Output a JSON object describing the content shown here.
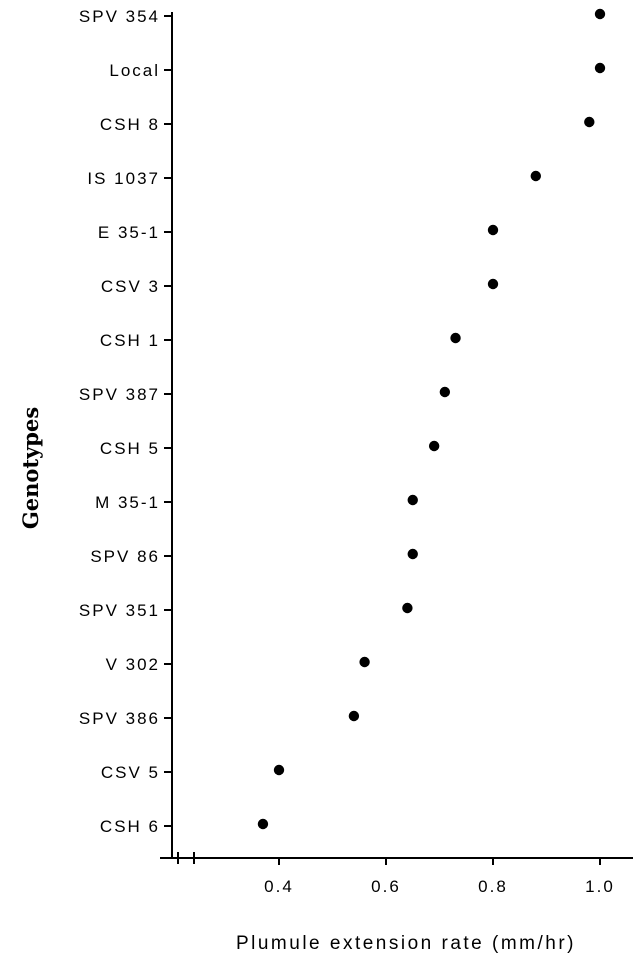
{
  "chart_data": {
    "type": "scatter",
    "title": "",
    "xlabel": "Plumule extension rate (mm/hr)",
    "ylabel": "Genotypes",
    "xlim": [
      0.2,
      1.04
    ],
    "xticks": [
      "0.4",
      "0.6",
      "0.8",
      "1.0"
    ],
    "grid": false,
    "legend": "none",
    "categories": [
      "SPV 354",
      "Local",
      "CSH 8",
      "IS 1037",
      "E 35-1",
      "CSV 3",
      "CSH 1",
      "SPV 387",
      "CSH 5",
      "M 35-1",
      "SPV 86",
      "SPV 351",
      "V 302",
      "SPV 386",
      "CSV 5",
      "CSH 6"
    ],
    "series": [
      {
        "values": [
          1.0,
          1.0,
          0.98,
          0.88,
          0.8,
          0.8,
          0.73,
          0.71,
          0.69,
          0.65,
          0.65,
          0.64,
          0.56,
          0.54,
          0.4,
          0.37
        ]
      }
    ],
    "colors": {
      "axis": "#000000",
      "marker": "#000000"
    }
  }
}
